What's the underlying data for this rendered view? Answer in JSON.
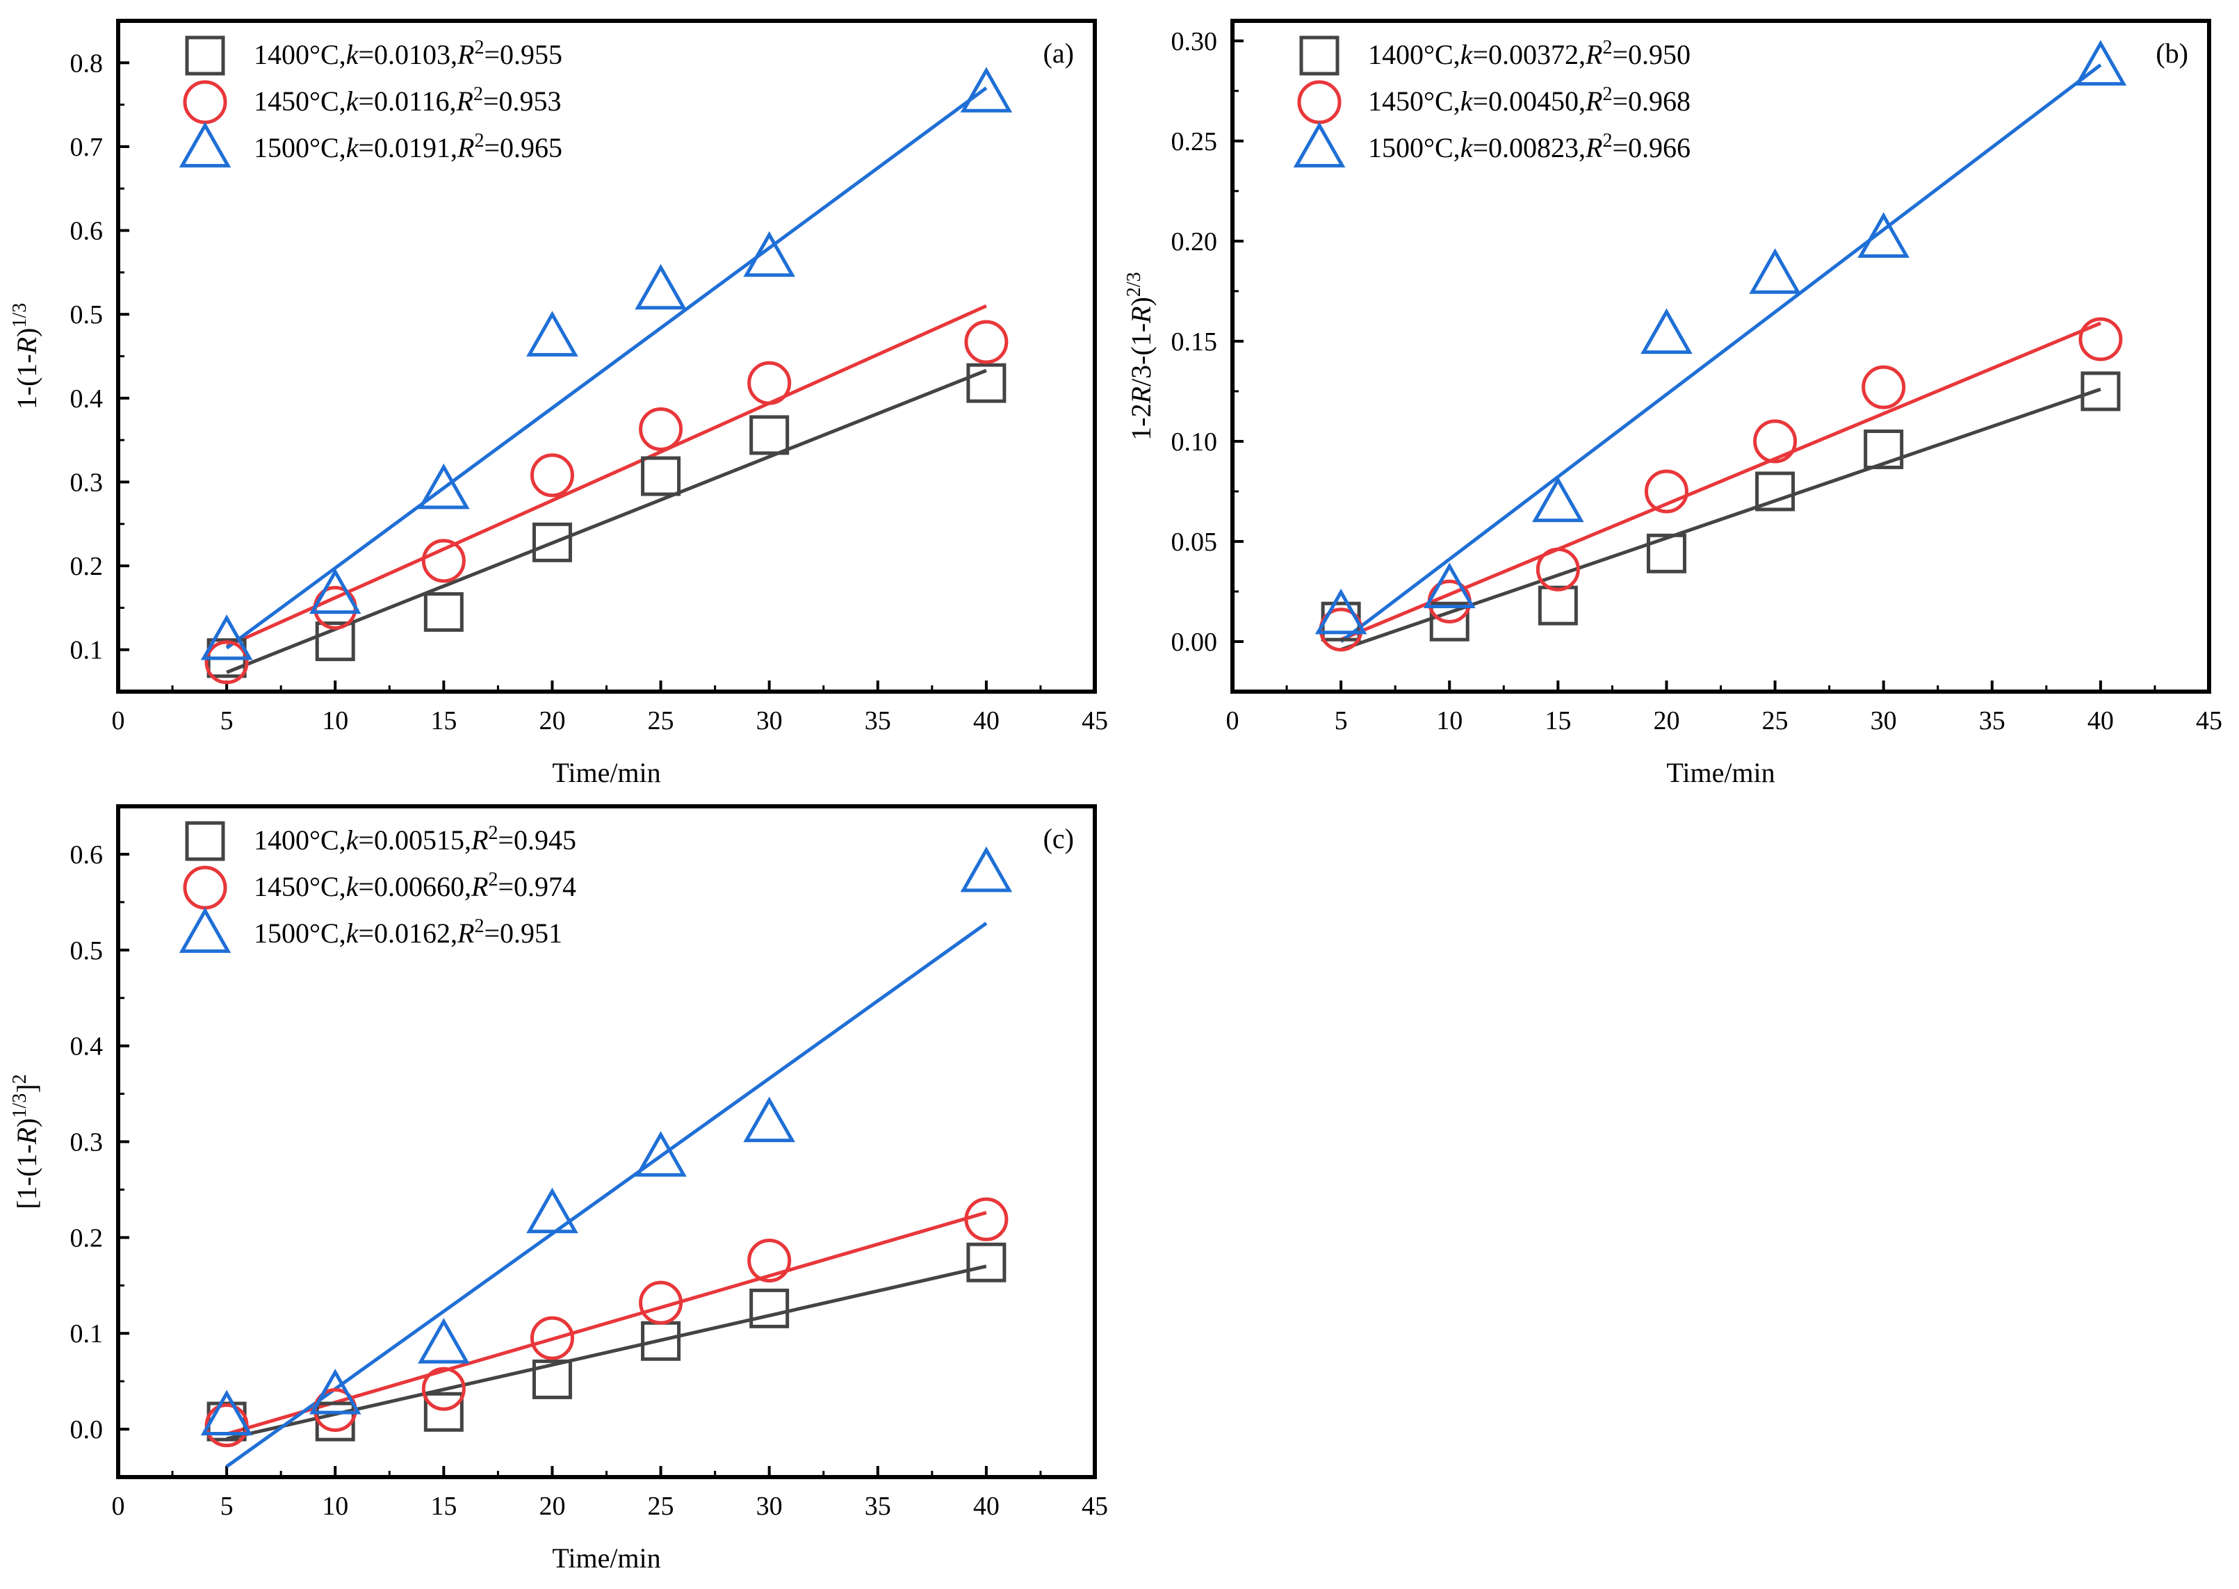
{
  "colors": {
    "s1400": "#444444",
    "s1450": "#e8373a",
    "s1500": "#1f6fd6",
    "axis": "#000000"
  },
  "chart_data": [
    {
      "panel": "(a)",
      "type": "scatter",
      "xlabel": "Time/min",
      "ylabel_parts": [
        "1-(1-",
        "R",
        ")",
        "1/3"
      ],
      "xlim": [
        0,
        45
      ],
      "ylim": [
        0.05,
        0.85
      ],
      "xticks": [
        0,
        5,
        10,
        15,
        20,
        25,
        30,
        35,
        40,
        45
      ],
      "yticks": [
        0.1,
        0.2,
        0.3,
        0.4,
        0.5,
        0.6,
        0.7,
        0.8
      ],
      "ytick_labels": [
        "0.1",
        "0.2",
        "0.3",
        "0.4",
        "0.5",
        "0.6",
        "0.7",
        "0.8"
      ],
      "legend_position": "top-left",
      "series": [
        {
          "temp": "1400°C",
          "k": "0.0103",
          "r2": "0.955",
          "marker": "square",
          "color": "#444444",
          "x": [
            5,
            10,
            15,
            20,
            25,
            30,
            40
          ],
          "y": [
            0.09,
            0.11,
            0.145,
            0.228,
            0.307,
            0.356,
            0.418
          ],
          "fit": [
            [
              5,
              0.073
            ],
            [
              40,
              0.433
            ]
          ]
        },
        {
          "temp": "1450°C",
          "k": "0.0116",
          "r2": "0.953",
          "marker": "circle",
          "color": "#e8373a",
          "x": [
            5,
            10,
            15,
            20,
            25,
            30,
            40
          ],
          "y": [
            0.085,
            0.15,
            0.206,
            0.308,
            0.363,
            0.418,
            0.467
          ],
          "fit": [
            [
              5,
              0.104
            ],
            [
              40,
              0.51
            ]
          ]
        },
        {
          "temp": "1500°C",
          "k": "0.0191",
          "r2": "0.965",
          "marker": "triangle",
          "color": "#1f6fd6",
          "x": [
            5,
            10,
            15,
            20,
            25,
            30,
            40
          ],
          "y": [
            0.11,
            0.165,
            0.29,
            0.472,
            0.528,
            0.567,
            0.763
          ],
          "fit": [
            [
              5,
              0.102
            ],
            [
              40,
              0.77
            ]
          ]
        }
      ]
    },
    {
      "panel": "(b)",
      "type": "scatter",
      "xlabel": "Time/min",
      "ylabel_parts": [
        "1-2",
        "R",
        "/3-(1-",
        "R",
        ")",
        "2/3"
      ],
      "xlim": [
        0,
        45
      ],
      "ylim": [
        -0.025,
        0.31
      ],
      "xticks": [
        0,
        5,
        10,
        15,
        20,
        25,
        30,
        35,
        40,
        45
      ],
      "yticks": [
        0.0,
        0.05,
        0.1,
        0.15,
        0.2,
        0.25,
        0.3
      ],
      "ytick_labels": [
        "0.00",
        "0.05",
        "0.10",
        "0.15",
        "0.20",
        "0.25",
        "0.30"
      ],
      "legend_position": "top-left",
      "series": [
        {
          "temp": "1400°C",
          "k": "0.00372",
          "r2": "0.950",
          "marker": "square",
          "color": "#444444",
          "x": [
            5,
            10,
            15,
            20,
            25,
            30,
            40
          ],
          "y": [
            0.01,
            0.01,
            0.018,
            0.044,
            0.075,
            0.096,
            0.125
          ],
          "fit": [
            [
              5,
              -0.004
            ],
            [
              40,
              0.126
            ]
          ]
        },
        {
          "temp": "1450°C",
          "k": "0.00450",
          "r2": "0.968",
          "marker": "circle",
          "color": "#e8373a",
          "x": [
            5,
            10,
            15,
            20,
            25,
            30,
            40
          ],
          "y": [
            0.006,
            0.02,
            0.036,
            0.075,
            0.1,
            0.127,
            0.151
          ],
          "fit": [
            [
              5,
              0.001
            ],
            [
              40,
              0.159
            ]
          ]
        },
        {
          "temp": "1500°C",
          "k": "0.00823",
          "r2": "0.966",
          "marker": "triangle",
          "color": "#1f6fd6",
          "x": [
            5,
            10,
            15,
            20,
            25,
            30,
            40
          ],
          "y": [
            0.013,
            0.026,
            0.069,
            0.153,
            0.183,
            0.201,
            0.287
          ],
          "fit": [
            [
              5,
              0.0
            ],
            [
              40,
              0.288
            ]
          ]
        }
      ]
    },
    {
      "panel": "(c)",
      "type": "scatter",
      "xlabel": "Time/min",
      "ylabel_parts": [
        "[1-(1-",
        "R",
        ")",
        "1/3",
        "]",
        "2"
      ],
      "xlim": [
        0,
        45
      ],
      "ylim": [
        -0.05,
        0.65
      ],
      "xticks": [
        0,
        5,
        10,
        15,
        20,
        25,
        30,
        35,
        40,
        45
      ],
      "yticks": [
        0.0,
        0.1,
        0.2,
        0.3,
        0.4,
        0.5,
        0.6
      ],
      "ytick_labels": [
        "0.0",
        "0.1",
        "0.2",
        "0.3",
        "0.4",
        "0.5",
        "0.6"
      ],
      "legend_position": "top-left",
      "series": [
        {
          "temp": "1400°C",
          "k": "0.00515",
          "r2": "0.945",
          "marker": "square",
          "color": "#444444",
          "x": [
            5,
            10,
            15,
            20,
            25,
            30,
            40
          ],
          "y": [
            0.008,
            0.008,
            0.018,
            0.052,
            0.092,
            0.126,
            0.174
          ],
          "fit": [
            [
              5,
              -0.01
            ],
            [
              40,
              0.17
            ]
          ]
        },
        {
          "temp": "1450°C",
          "k": "0.00660",
          "r2": "0.974",
          "marker": "circle",
          "color": "#e8373a",
          "x": [
            5,
            10,
            15,
            20,
            25,
            30,
            40
          ],
          "y": [
            0.004,
            0.02,
            0.042,
            0.095,
            0.132,
            0.176,
            0.219
          ],
          "fit": [
            [
              5,
              -0.005
            ],
            [
              40,
              0.226
            ]
          ]
        },
        {
          "temp": "1500°C",
          "k": "0.0162",
          "r2": "0.951",
          "marker": "triangle",
          "color": "#1f6fd6",
          "x": [
            5,
            10,
            15,
            20,
            25,
            30,
            40
          ],
          "y": [
            0.013,
            0.035,
            0.088,
            0.224,
            0.283,
            0.319,
            0.58
          ],
          "fit": [
            [
              5,
              -0.039
            ],
            [
              40,
              0.528
            ]
          ]
        }
      ]
    }
  ]
}
